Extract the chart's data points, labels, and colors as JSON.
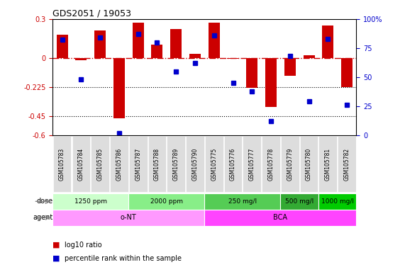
{
  "title": "GDS2051 / 19053",
  "samples": [
    "GSM105783",
    "GSM105784",
    "GSM105785",
    "GSM105786",
    "GSM105787",
    "GSM105788",
    "GSM105789",
    "GSM105790",
    "GSM105775",
    "GSM105776",
    "GSM105777",
    "GSM105778",
    "GSM105779",
    "GSM105780",
    "GSM105781",
    "GSM105782"
  ],
  "log10_ratio": [
    0.18,
    -0.02,
    0.21,
    -0.47,
    0.27,
    0.1,
    0.22,
    0.03,
    0.27,
    -0.01,
    -0.235,
    -0.38,
    -0.14,
    0.02,
    0.25,
    -0.23
  ],
  "percentile_rank": [
    82,
    48,
    84,
    2,
    87,
    80,
    55,
    62,
    86,
    45,
    38,
    12,
    68,
    29,
    83,
    26
  ],
  "ylim_left": [
    -0.6,
    0.3
  ],
  "ylim_right": [
    0,
    100
  ],
  "hlines": [
    -0.225,
    -0.45
  ],
  "hline_labels_left": [
    "-0.225",
    "-0.45"
  ],
  "hline_labels_right": [
    "50",
    "25"
  ],
  "yticks_left": [
    0.3,
    0.0,
    -0.225,
    -0.45,
    -0.6
  ],
  "ytick_labels_left": [
    "0.3",
    "0",
    "-0.225",
    "-0.45",
    "-0.6"
  ],
  "yticks_right": [
    100,
    75,
    50,
    25,
    0
  ],
  "ytick_labels_right": [
    "100%",
    "75",
    "50",
    "25",
    "0"
  ],
  "bar_color": "#CC0000",
  "dot_color": "#0000CC",
  "dose_groups": [
    {
      "label": "1250 ppm",
      "start": 0,
      "end": 4,
      "color": "#AAFFAA"
    },
    {
      "label": "2000 ppm",
      "start": 4,
      "end": 8,
      "color": "#66DD66"
    },
    {
      "label": "250 mg/l",
      "start": 8,
      "end": 12,
      "color": "#44CC44"
    },
    {
      "label": "500 mg/l",
      "start": 12,
      "end": 14,
      "color": "#22AA22"
    },
    {
      "label": "1000 mg/l",
      "start": 14,
      "end": 16,
      "color": "#00BB00"
    }
  ],
  "agent_groups": [
    {
      "label": "o-NT",
      "start": 0,
      "end": 8,
      "color": "#FF99FF"
    },
    {
      "label": "BCA",
      "start": 8,
      "end": 16,
      "color": "#FF33FF"
    }
  ],
  "dose_colors": [
    "#ccffcc",
    "#88ee88",
    "#66dd66",
    "#33bb33",
    "#00cc00"
  ],
  "legend_bar_color": "#CC0000",
  "legend_dot_color": "#0000CC",
  "background_color": "#ffffff"
}
